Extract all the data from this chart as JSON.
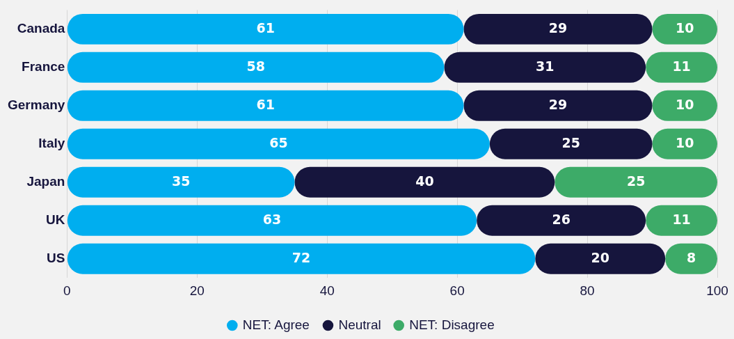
{
  "chart_data": {
    "type": "bar",
    "orientation": "horizontal",
    "stacked": true,
    "categories": [
      "Canada",
      "France",
      "Germany",
      "Italy",
      "Japan",
      "UK",
      "US"
    ],
    "series": [
      {
        "name": "NET: Agree",
        "color": "#00aeef",
        "values": [
          61,
          58,
          61,
          65,
          35,
          63,
          72
        ]
      },
      {
        "name": "Neutral",
        "color": "#16153d",
        "values": [
          29,
          31,
          29,
          25,
          40,
          26,
          20
        ]
      },
      {
        "name": "NET: Disagree",
        "color": "#3dab68",
        "values": [
          10,
          11,
          10,
          10,
          25,
          11,
          8
        ]
      }
    ],
    "xlim": [
      0,
      100
    ],
    "xticks": [
      0,
      20,
      40,
      60,
      80,
      100
    ],
    "grid": "x",
    "legend": "bottom",
    "marker": "circle",
    "data_labels": true
  }
}
